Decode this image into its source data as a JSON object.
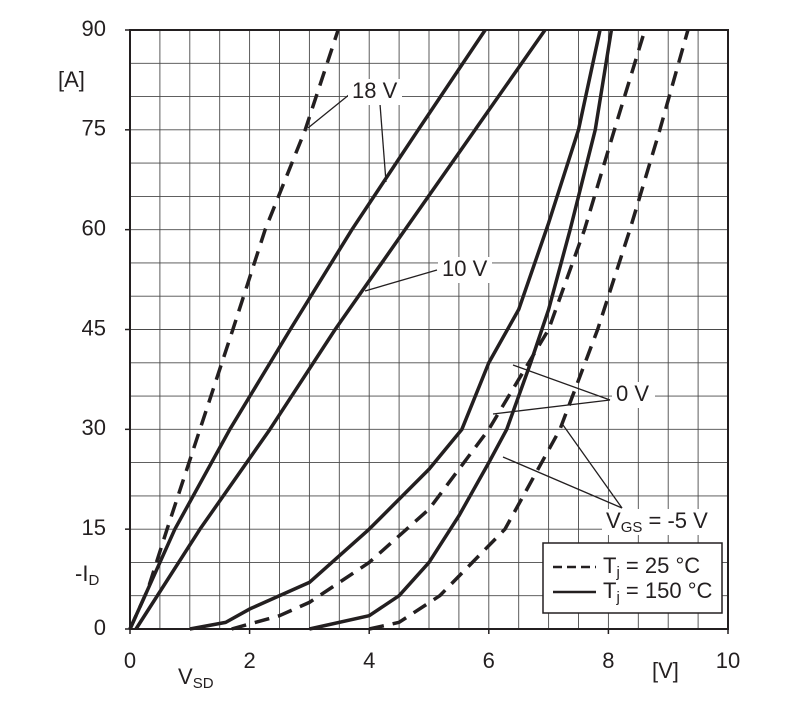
{
  "chart_data": {
    "type": "line",
    "color": "#231f20",
    "y_unit": "[A]",
    "y_label": {
      "main": "-I",
      "sub": "D"
    },
    "x_unit": "[V]",
    "x_label": {
      "main": "V",
      "sub": "SD"
    },
    "xlim": [
      0,
      10
    ],
    "ylim": [
      0,
      90
    ],
    "xticks": [
      0,
      2,
      4,
      6,
      8,
      10
    ],
    "yticks": [
      0,
      15,
      30,
      45,
      60,
      75,
      90
    ],
    "xgrid": [
      0,
      0.5,
      1,
      1.5,
      2,
      2.5,
      3,
      3.5,
      4,
      4.5,
      5,
      5.5,
      6,
      6.5,
      7,
      7.5,
      8,
      8.5,
      9,
      9.5,
      10
    ],
    "ygrid": [
      0,
      5,
      10,
      15,
      20,
      25,
      30,
      35,
      40,
      45,
      50,
      55,
      60,
      65,
      70,
      75,
      80,
      85,
      90
    ],
    "series": [
      {
        "style": "dashed",
        "x": [
          0,
          0.3,
          0.62,
          1.17,
          1.72,
          2.26,
          2.93,
          3.48
        ],
        "y": [
          0,
          6,
          15,
          30,
          45,
          60,
          75,
          90
        ]
      },
      {
        "style": "solid",
        "x": [
          0,
          0.75,
          1.67,
          2.68,
          3.71,
          4.82,
          5.94
        ],
        "y": [
          0,
          15,
          30,
          45,
          60,
          75,
          90
        ]
      },
      {
        "style": "solid",
        "x": [
          0.1,
          1.17,
          2.34,
          3.43,
          4.6,
          5.77,
          6.94
        ],
        "y": [
          0,
          15,
          30,
          45,
          60,
          75,
          90
        ]
      },
      {
        "style": "solid",
        "x": [
          1,
          1.6,
          2,
          3,
          4,
          5,
          5.55,
          6,
          6.5,
          7,
          7.5,
          7.86
        ],
        "y": [
          0,
          1,
          3,
          7,
          15,
          24,
          30,
          40,
          48,
          61,
          75,
          90
        ]
      },
      {
        "style": "dashed",
        "x": [
          1.7,
          2.5,
          3,
          4,
          5,
          6,
          7,
          7.6,
          8.1,
          8.61
        ],
        "y": [
          0,
          2,
          4,
          10,
          18,
          30,
          45,
          60,
          75,
          90
        ]
      },
      {
        "style": "solid",
        "x": [
          3,
          4,
          4.5,
          5,
          5.5,
          6,
          6.3,
          6.7,
          7,
          7.36,
          7.78,
          8.05
        ],
        "y": [
          0,
          2,
          5,
          10,
          17,
          25,
          30,
          40,
          48,
          60,
          75,
          90
        ]
      },
      {
        "style": "dashed",
        "x": [
          4,
          4.5,
          5.18,
          6.27,
          7.19,
          7.82,
          8.36,
          8.86,
          9.33
        ],
        "y": [
          0,
          1,
          5,
          15,
          30,
          45,
          60,
          75,
          90
        ]
      }
    ],
    "annotations": [
      {
        "text": "18 V"
      },
      {
        "text": "10 V"
      },
      {
        "text": "0 V"
      },
      {
        "main": "V",
        "sub": "GS",
        "rest": " = -5 V"
      }
    ],
    "legend": [
      {
        "main": "T",
        "sub": "j",
        "rest": " = 25 °C",
        "style": "dashed"
      },
      {
        "main": "T",
        "sub": "j",
        "rest": " = 150 °C",
        "style": "solid"
      }
    ]
  }
}
